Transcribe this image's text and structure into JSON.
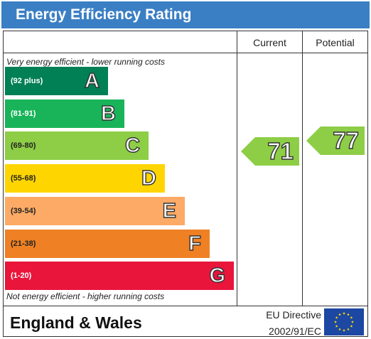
{
  "title": "Energy Efficiency Rating",
  "columns": {
    "current": "Current",
    "potential": "Potential"
  },
  "notes": {
    "top": "Very energy efficient - lower running costs",
    "bottom": "Not energy efficient - higher running costs"
  },
  "footer": {
    "region": "England & Wales",
    "directive_line1": "EU Directive",
    "directive_line2": "2002/91/EC",
    "flag_icon": "eu-flag-icon"
  },
  "chart_data": {
    "type": "bar",
    "categories": [
      "A",
      "B",
      "C",
      "D",
      "E",
      "F",
      "G"
    ],
    "bands": [
      {
        "letter": "A",
        "range": "(92 plus)",
        "min": 92,
        "max": 100,
        "color": "#008054",
        "range_color": "#ffffff"
      },
      {
        "letter": "B",
        "range": "(81-91)",
        "min": 81,
        "max": 91,
        "color": "#19b459",
        "range_color": "#ffffff"
      },
      {
        "letter": "C",
        "range": "(69-80)",
        "min": 69,
        "max": 80,
        "color": "#8dce46",
        "range_color": "#222222"
      },
      {
        "letter": "D",
        "range": "(55-68)",
        "min": 55,
        "max": 68,
        "color": "#ffd500",
        "range_color": "#222222"
      },
      {
        "letter": "E",
        "range": "(39-54)",
        "min": 39,
        "max": 54,
        "color": "#fcaa65",
        "range_color": "#222222"
      },
      {
        "letter": "F",
        "range": "(21-38)",
        "min": 21,
        "max": 38,
        "color": "#ef8023",
        "range_color": "#222222"
      },
      {
        "letter": "G",
        "range": "(1-20)",
        "min": 1,
        "max": 20,
        "color": "#e9153b",
        "range_color": "#ffffff"
      }
    ],
    "current": {
      "value": 71,
      "band": "C",
      "color": "#8dce46"
    },
    "potential": {
      "value": 77,
      "band": "C",
      "color": "#8dce46"
    }
  }
}
